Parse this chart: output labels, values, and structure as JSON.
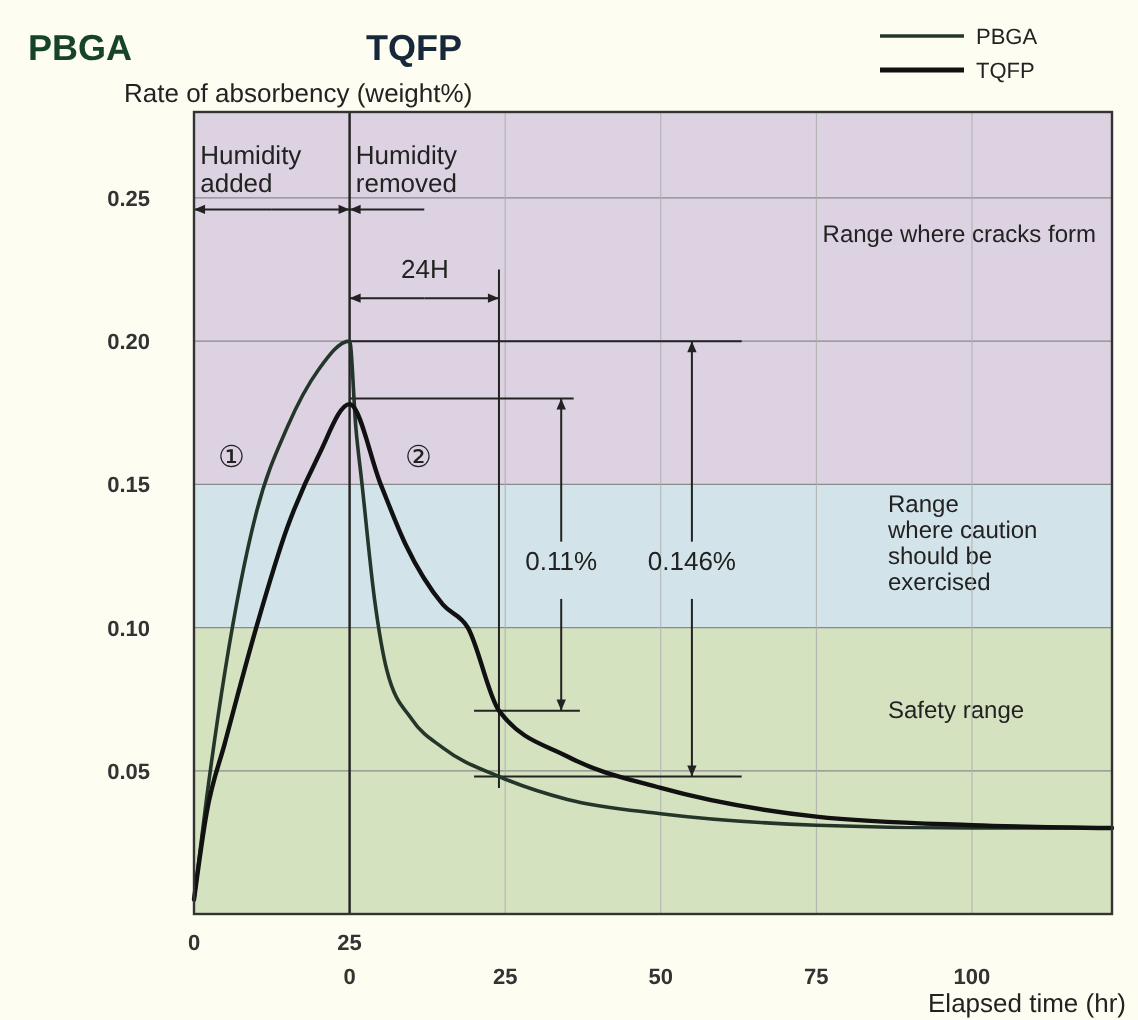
{
  "chart_data": {
    "type": "line",
    "title": "PBGA",
    "subtitle": "TQFP",
    "ylabel": "Rate of absorbency (weight%)",
    "xlabel": "Elapsed time (hr)",
    "xlim": [
      -25,
      122.5
    ],
    "ylim": [
      0,
      0.28
    ],
    "x2lim": [
      0,
      147.5
    ],
    "xticks": [
      0,
      25,
      50,
      75,
      100
    ],
    "x2ticks": [
      0,
      25
    ],
    "yticks": [
      {
        "value": 0.05,
        "label": "0.05"
      },
      {
        "value": 0.1,
        "label": "0.10"
      },
      {
        "value": 0.15,
        "label": "0.15"
      },
      {
        "value": 0.2,
        "label": "0.20"
      },
      {
        "value": 0.25,
        "label": "0.25"
      }
    ],
    "grid": true,
    "legend": "top right",
    "line_style": "solid",
    "marker": "none",
    "series": [
      {
        "name": "PBGA",
        "color": "#24362a",
        "x": [
          -25,
          -23,
          -20,
          -15,
          -10,
          -5,
          0,
          1,
          2,
          4,
          6,
          10,
          15,
          24,
          35,
          50,
          75,
          100,
          122.5
        ],
        "values": [
          0.005,
          0.04,
          0.085,
          0.14,
          0.17,
          0.19,
          0.2,
          0.17,
          0.15,
          0.11,
          0.085,
          0.068,
          0.058,
          0.048,
          0.04,
          0.035,
          0.031,
          0.03,
          0.03
        ]
      },
      {
        "name": "TQFP",
        "color": "#111111",
        "x": [
          -25,
          -23,
          -20,
          -15,
          -10,
          -5,
          0,
          5,
          9,
          15,
          19,
          24,
          35,
          50,
          75,
          100,
          122.5
        ],
        "values": [
          0.005,
          0.035,
          0.06,
          0.1,
          0.135,
          0.16,
          0.178,
          0.15,
          0.129,
          0.108,
          0.1,
          0.071,
          0.055,
          0.044,
          0.034,
          0.031,
          0.03
        ]
      }
    ],
    "bands": [
      {
        "axis": "y",
        "from": 0.15,
        "to": 0.28,
        "label": "Range where cracks form",
        "color": "#dcd2e2"
      },
      {
        "axis": "y",
        "from": 0.1,
        "to": 0.15,
        "label": "Range\nwhere caution\nshould be\nexercised",
        "color": "#d2e4ea"
      },
      {
        "axis": "y",
        "from": 0,
        "to": 0.1,
        "label": "Safety range",
        "color": "#d5e2c0"
      }
    ],
    "ref_lines": [
      {
        "axis": "x",
        "value": 0,
        "color": "#222222"
      },
      {
        "axis": "x",
        "value": 24,
        "label": "24H",
        "color": "#222222"
      },
      {
        "axis": "y",
        "value": 0.2,
        "color": "#222222"
      },
      {
        "axis": "y",
        "value": 0.18,
        "color": "#222222"
      },
      {
        "axis": "y",
        "value": 0.071,
        "color": "#222222"
      },
      {
        "axis": "y",
        "value": 0.048,
        "color": "#222222"
      }
    ],
    "annotations": [
      {
        "text": "Humidity\nadded",
        "x": 0,
        "y": 0.246
      },
      "Humidity\nremoved",
      "①",
      "②",
      {
        "text": "0.11%",
        "x": 34,
        "y": 0.071
      },
      {
        "text": "0.146%",
        "x": 55,
        "y": 0.048
      }
    ]
  }
}
